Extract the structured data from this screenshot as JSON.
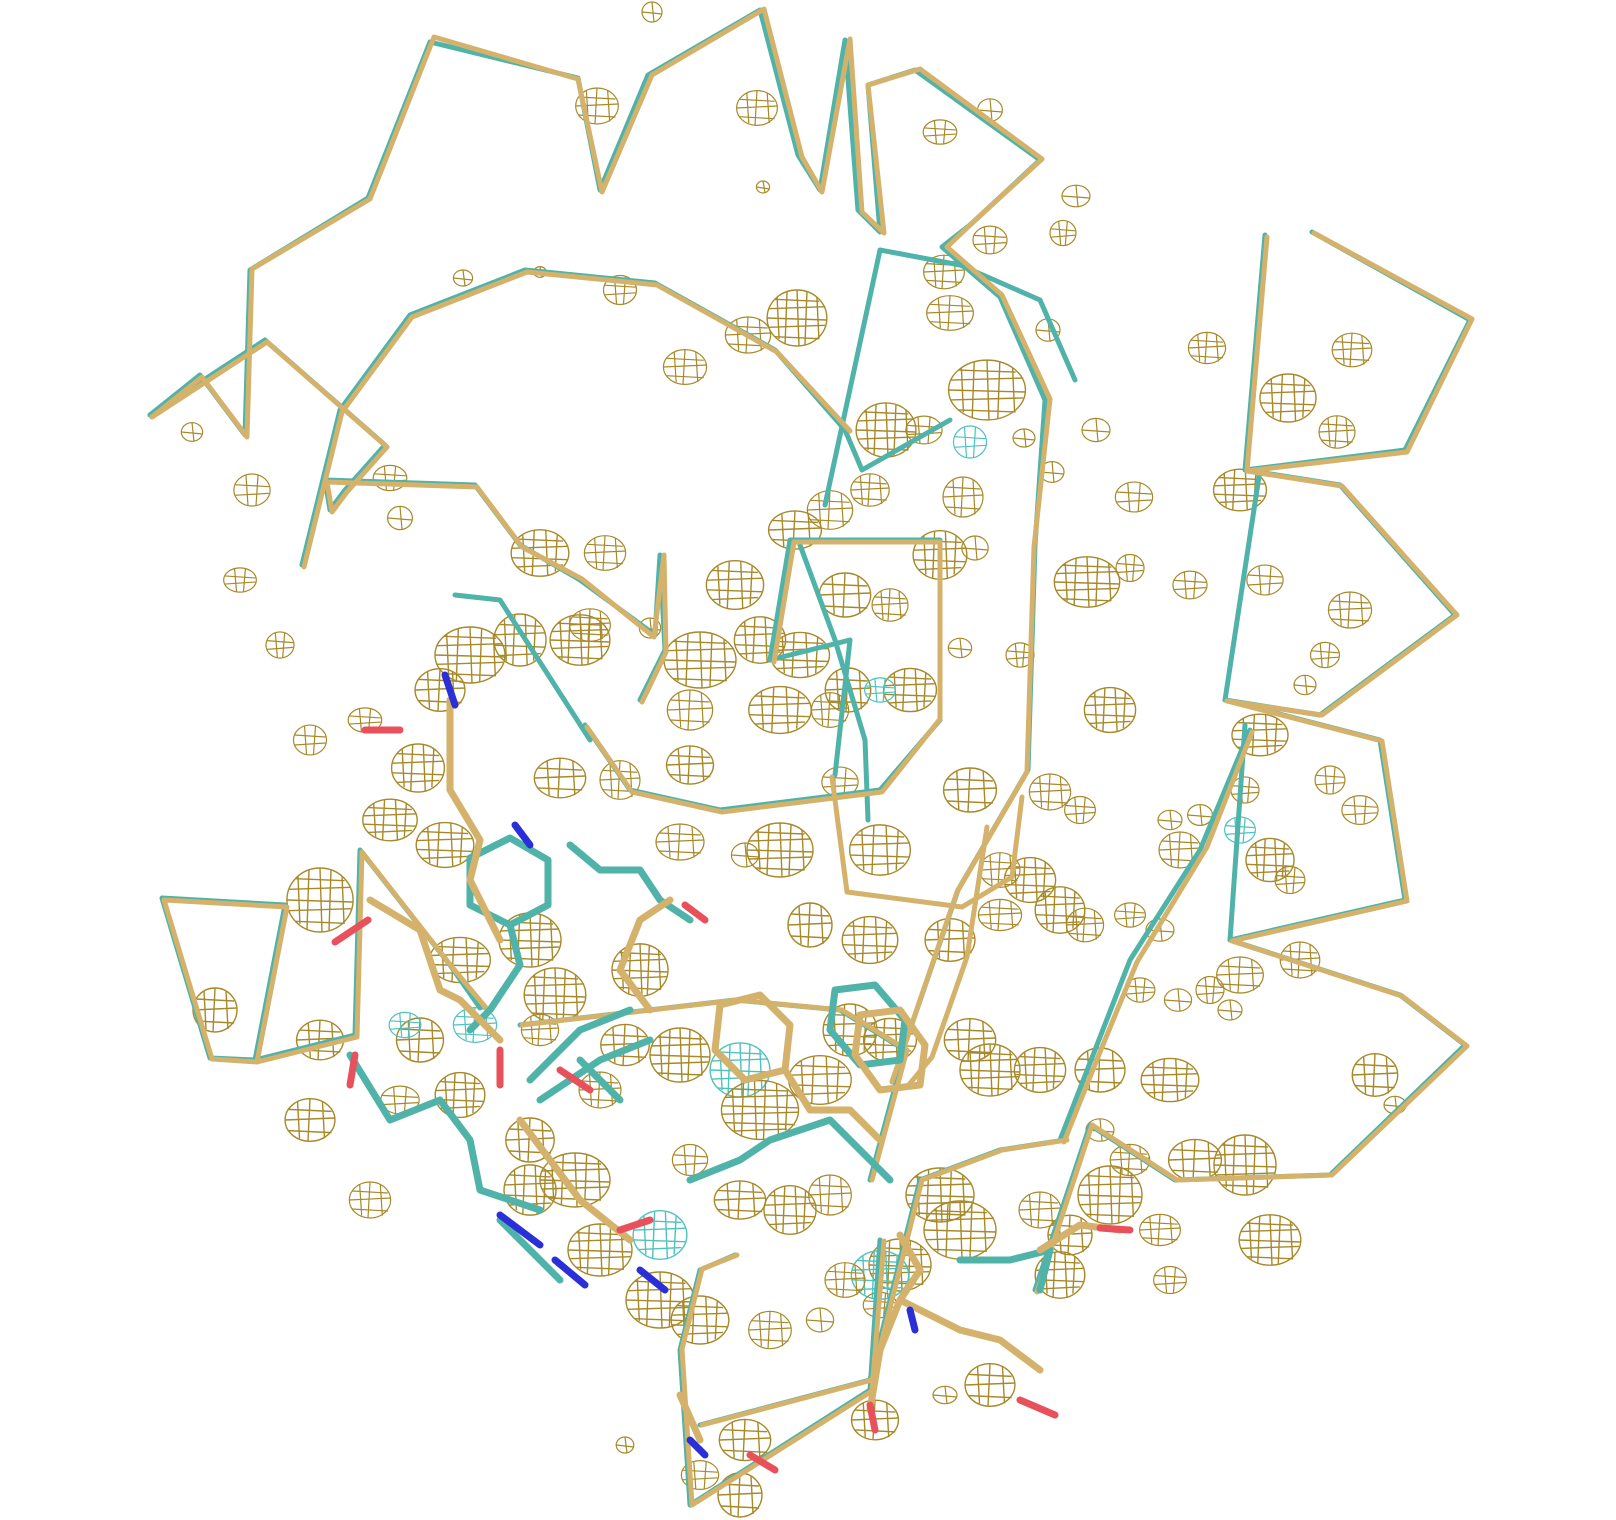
{
  "scene": {
    "kind": "protein structure superposition with electron density mesh",
    "colors": {
      "background": "#ffffff",
      "model_a": "#d4b26b",
      "model_b": "#4fb3a9",
      "density_mesh": "#a8892a",
      "density_mesh_alt": "#4fc2bd",
      "oxygen": "#e8505b",
      "nitrogen": "#2a2fd8"
    }
  }
}
